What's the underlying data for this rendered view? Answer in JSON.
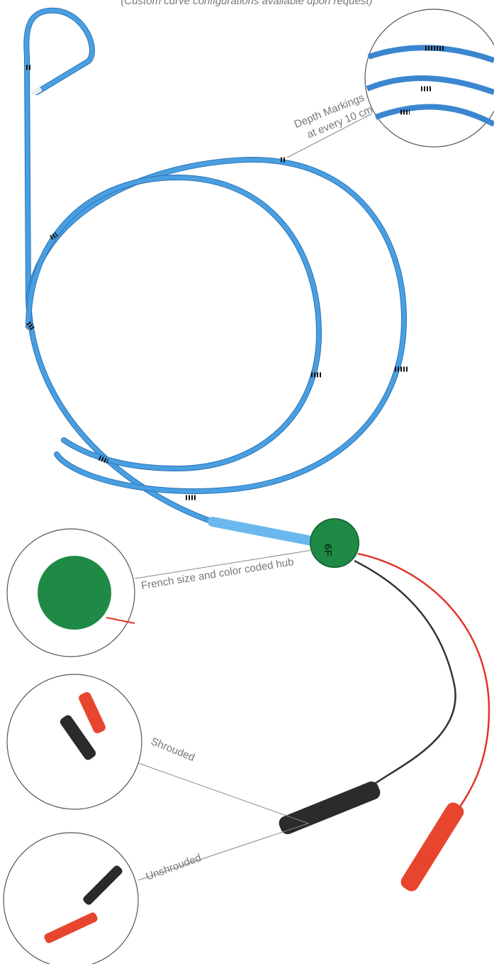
{
  "header": {
    "note": "(Custom curve configurations available upon request)"
  },
  "hub": {
    "size": "6F"
  },
  "callouts": [
    {
      "lines": [
        "Depth Markings",
        "at every 10 cm"
      ]
    },
    {
      "lines": [
        "French size and color coded hub"
      ]
    },
    {
      "lines": [
        "Shrouded"
      ]
    },
    {
      "lines": [
        "Unshrouded"
      ]
    }
  ]
}
